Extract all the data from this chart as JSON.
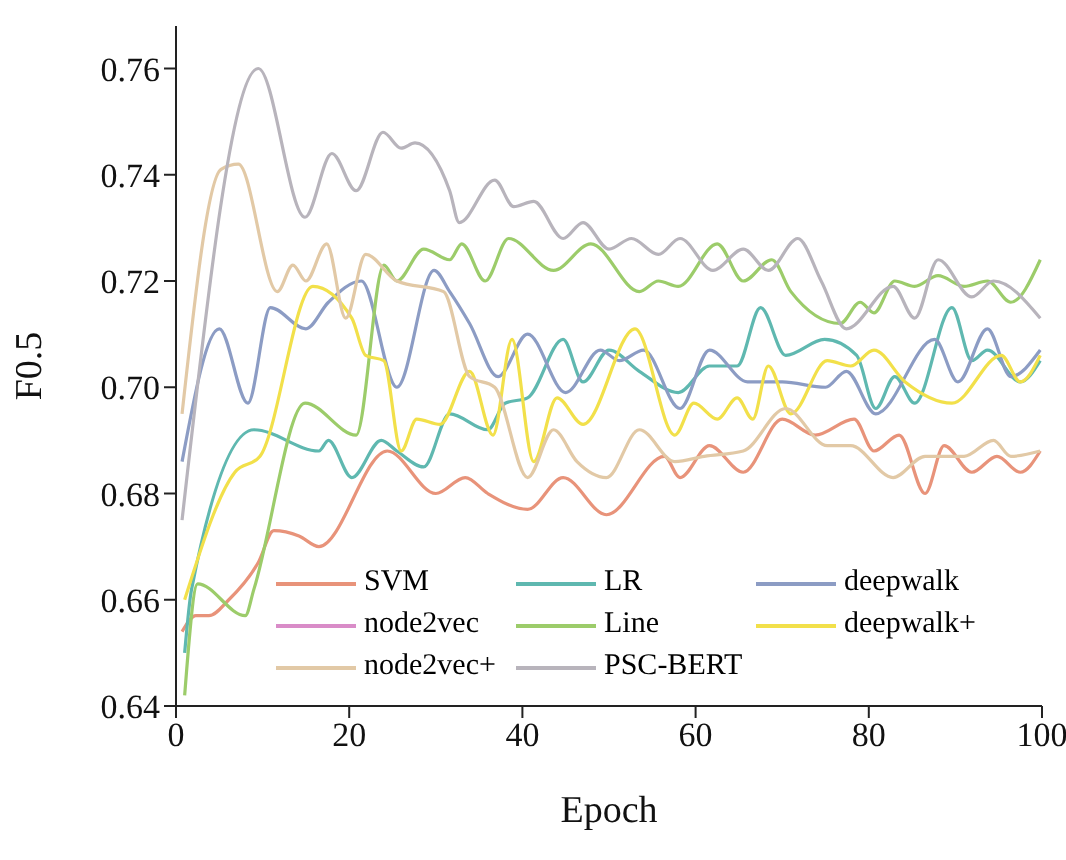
{
  "chart_data": {
    "type": "line",
    "xlabel": "Epoch",
    "ylabel": "F0.5",
    "xlim": [
      0,
      100
    ],
    "xticks": [
      0,
      20,
      40,
      60,
      80,
      100
    ],
    "ylim": [
      0.64,
      0.768
    ],
    "yticks": [
      0.64,
      0.66,
      0.68,
      {
        "value": 0.7,
        "label": "0.70"
      },
      0.72,
      0.74,
      0.76
    ],
    "legend": "bottom",
    "marker": "none",
    "line_style": "solid",
    "series": [
      {
        "name": "SVM",
        "color": "#e8937a",
        "x": [
          0.7,
          2.3,
          3.8,
          6.1,
          9.5,
          11.3,
          14.2,
          16.5,
          24.4,
          30,
          33.4,
          36,
          40.6,
          44.7,
          49.7,
          56.4,
          58.2,
          61.6,
          65.5,
          70,
          73.8,
          78.3,
          80.6,
          83.5,
          86.5,
          88.7,
          91.9,
          94.8,
          97.5,
          99.8
        ],
        "values": [
          0.654,
          0.657,
          0.657,
          0.66,
          0.667,
          0.673,
          0.672,
          0.67,
          0.688,
          0.68,
          0.683,
          0.68,
          0.677,
          0.683,
          0.676,
          0.687,
          0.683,
          0.689,
          0.684,
          0.694,
          0.691,
          0.694,
          0.688,
          0.691,
          0.68,
          0.689,
          0.684,
          0.687,
          0.684,
          0.688
        ]
      },
      {
        "name": "LR",
        "color": "#5fb8b0",
        "x": [
          1,
          1.8,
          9,
          16.5,
          17.6,
          20.3,
          23.7,
          25.5,
          28.6,
          31.6,
          36,
          38,
          40.6,
          44.7,
          47,
          50,
          53.5,
          58,
          61.6,
          64.8,
          67.5,
          70.4,
          74.9,
          78.6,
          80.8,
          83,
          85.3,
          89.6,
          91.9,
          93.7,
          97.5,
          99.8
        ],
        "values": [
          0.65,
          0.662,
          0.692,
          0.688,
          0.69,
          0.683,
          0.69,
          0.688,
          0.685,
          0.695,
          0.692,
          0.697,
          0.698,
          0.709,
          0.701,
          0.707,
          0.703,
          0.699,
          0.704,
          0.704,
          0.715,
          0.706,
          0.709,
          0.706,
          0.696,
          0.702,
          0.697,
          0.715,
          0.705,
          0.707,
          0.701,
          0.705
        ]
      },
      {
        "name": "deepwalk",
        "color": "#8c9cc4",
        "x": [
          0.7,
          5,
          8.3,
          10.9,
          15,
          17.6,
          21.4,
          25.5,
          29.8,
          31.6,
          33.9,
          37.2,
          40.6,
          45,
          49,
          51.2,
          54,
          58.2,
          61.6,
          66,
          70,
          75,
          77.4,
          80.8,
          87.6,
          90.3,
          93.7,
          96.4,
          99.8
        ],
        "values": [
          0.686,
          0.711,
          0.697,
          0.715,
          0.711,
          0.716,
          0.72,
          0.7,
          0.722,
          0.718,
          0.712,
          0.702,
          0.71,
          0.699,
          0.707,
          0.705,
          0.707,
          0.696,
          0.707,
          0.701,
          0.701,
          0.7,
          0.703,
          0.695,
          0.709,
          0.701,
          0.711,
          0.702,
          0.707
        ]
      },
      {
        "name": "node2vec",
        "color": "#d98cc8"
      },
      {
        "name": "Line",
        "color": "#9ccc6a",
        "x": [
          1,
          2.5,
          8,
          9,
          14.9,
          20.8,
          24,
          25.5,
          28.6,
          31.6,
          33,
          35.7,
          38.4,
          43.6,
          47.9,
          53.5,
          55.7,
          58,
          62.5,
          65.5,
          68.8,
          71,
          76.7,
          79,
          80.6,
          83,
          85.3,
          88,
          91,
          93.7,
          96.4,
          99.8
        ],
        "values": [
          0.642,
          0.663,
          0.657,
          0.662,
          0.697,
          0.691,
          0.723,
          0.72,
          0.726,
          0.724,
          0.727,
          0.72,
          0.728,
          0.722,
          0.727,
          0.718,
          0.72,
          0.719,
          0.727,
          0.72,
          0.724,
          0.718,
          0.712,
          0.716,
          0.714,
          0.72,
          0.719,
          0.721,
          0.719,
          0.72,
          0.716,
          0.724
        ]
      },
      {
        "name": "deepwalk+",
        "color": "#f2e04a",
        "x": [
          1,
          6.8,
          9.7,
          15.8,
          20.3,
          21.9,
          24,
          26,
          27.8,
          30.5,
          33.9,
          36.6,
          38.8,
          41.3,
          44,
          47,
          53,
          57.6,
          59.8,
          62.5,
          64.8,
          66.6,
          68.4,
          71,
          75.2,
          77.9,
          80.6,
          84.2,
          89.6,
          95.3,
          97.5,
          99.8
        ],
        "values": [
          0.66,
          0.684,
          0.687,
          0.719,
          0.713,
          0.706,
          0.705,
          0.688,
          0.694,
          0.693,
          0.703,
          0.691,
          0.709,
          0.686,
          0.698,
          0.693,
          0.711,
          0.691,
          0.697,
          0.694,
          0.698,
          0.694,
          0.704,
          0.695,
          0.705,
          0.704,
          0.707,
          0.701,
          0.697,
          0.706,
          0.701,
          0.706
        ]
      },
      {
        "name": "node2vec+",
        "color": "#e2c9a6",
        "x": [
          0.7,
          5.2,
          7.2,
          11.7,
          13.5,
          15,
          17.4,
          19.6,
          21.9,
          25.5,
          30.9,
          33.9,
          36.8,
          40.6,
          43.6,
          46.3,
          49.7,
          53.5,
          57.6,
          61,
          65.5,
          70.4,
          75.2,
          77.9,
          82.8,
          86.5,
          91,
          94.4,
          96.4,
          99.8
        ],
        "values": [
          0.695,
          0.741,
          0.742,
          0.718,
          0.723,
          0.72,
          0.727,
          0.713,
          0.725,
          0.72,
          0.718,
          0.702,
          0.7,
          0.683,
          0.692,
          0.686,
          0.683,
          0.692,
          0.686,
          0.687,
          0.688,
          0.696,
          0.689,
          0.689,
          0.683,
          0.687,
          0.687,
          0.69,
          0.687,
          0.688
        ]
      },
      {
        "name": "PSC-BERT",
        "color": "#b8b4bc",
        "x": [
          0.7,
          9.5,
          14.9,
          18,
          20.8,
          23.9,
          26,
          27.6,
          31.6,
          32.7,
          36.8,
          39,
          41.3,
          44.7,
          47,
          50,
          52.6,
          55.7,
          58.2,
          62,
          65.5,
          68.4,
          71.8,
          74.5,
          77.4,
          82.8,
          85.3,
          88,
          91.9,
          94.4,
          99.8
        ],
        "values": [
          0.675,
          0.76,
          0.732,
          0.744,
          0.737,
          0.748,
          0.745,
          0.746,
          0.737,
          0.731,
          0.739,
          0.734,
          0.735,
          0.728,
          0.731,
          0.726,
          0.728,
          0.725,
          0.728,
          0.722,
          0.726,
          0.722,
          0.728,
          0.72,
          0.711,
          0.719,
          0.713,
          0.724,
          0.717,
          0.72,
          0.713
        ]
      }
    ]
  }
}
